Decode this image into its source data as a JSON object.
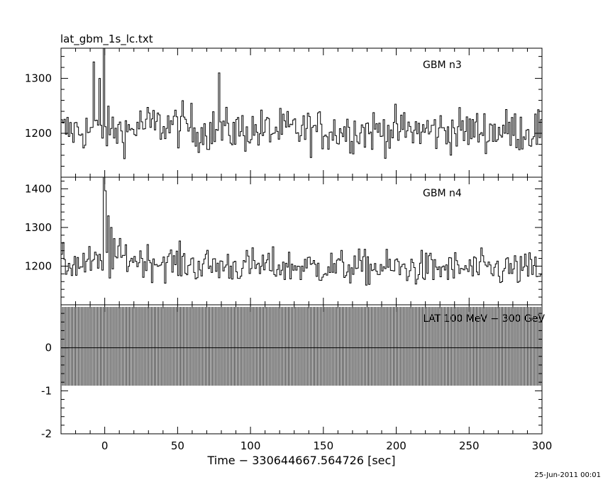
{
  "chart_data": {
    "type": "line",
    "title": "lat_gbm_1s_lc.txt",
    "xlabel": "Time − 330644667.564726 [sec]",
    "footer": "25-Jun-2011 00:01",
    "xlim": [
      -30,
      300
    ],
    "x_ticks": [
      0,
      50,
      100,
      150,
      200,
      250,
      300
    ],
    "panels": [
      {
        "name": "GBM n3",
        "ylim": [
          1120,
          1355
        ],
        "y_ticks": [
          1200,
          1300
        ],
        "baseline": 1205,
        "noise": 28,
        "peaks": [
          {
            "t": -8,
            "v": 1330
          },
          {
            "t": -1,
            "v": 1355
          },
          {
            "t": -4,
            "v": 1300
          },
          {
            "t": 78,
            "v": 1310
          }
        ]
      },
      {
        "name": "GBM n4",
        "ylim": [
          1100,
          1430
        ],
        "y_ticks": [
          1200,
          1300,
          1400
        ],
        "baseline": 1205,
        "noise": 32,
        "peaks": [
          {
            "t": -1,
            "v": 1430
          },
          {
            "t": 0,
            "v": 1395
          },
          {
            "t": 2,
            "v": 1330
          },
          {
            "t": 4,
            "v": 1300
          }
        ]
      },
      {
        "name": "LAT 100 MeV − 300 GeV",
        "ylim": [
          -2,
          1
        ],
        "y_ticks": [
          -2,
          -1,
          0
        ],
        "spike_high": 0.95,
        "spike_low": -0.88,
        "zero_line": 0
      }
    ]
  }
}
